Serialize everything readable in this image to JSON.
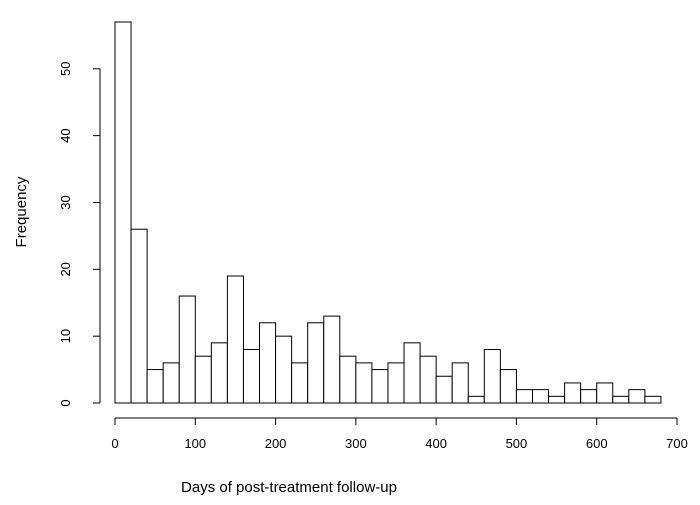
{
  "chart_data": {
    "type": "bar",
    "title": "",
    "xlabel": "Days of post-treatment follow-up",
    "ylabel": "Frequency",
    "bin_width": 20,
    "bin_start": 0,
    "values": [
      57,
      26,
      5,
      6,
      16,
      7,
      9,
      19,
      8,
      12,
      10,
      6,
      12,
      13,
      7,
      6,
      5,
      6,
      9,
      7,
      4,
      6,
      1,
      8,
      5,
      2,
      2,
      1,
      3,
      2,
      3,
      1,
      2,
      1
    ],
    "xlim": [
      0,
      700
    ],
    "ylim": [
      0,
      57
    ],
    "x_ticks": [
      0,
      100,
      200,
      300,
      400,
      500,
      600,
      700
    ],
    "y_ticks": [
      0,
      10,
      20,
      30,
      40,
      50
    ],
    "grid": false
  }
}
